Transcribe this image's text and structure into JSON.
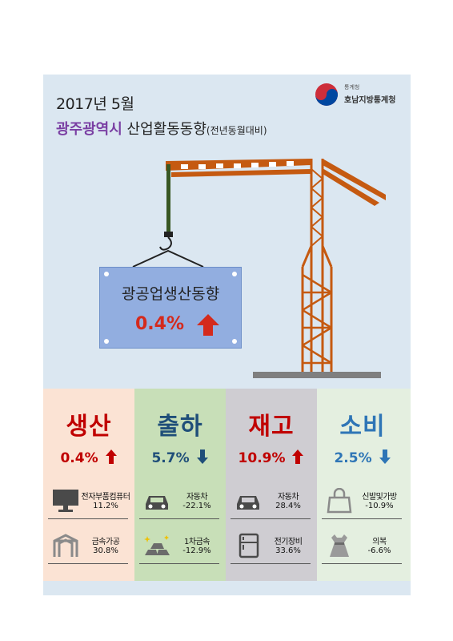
{
  "header": {
    "date": "2017년 5월",
    "city": "광주광역시",
    "topic": "산업활동동향",
    "note": "(전년동월대비)"
  },
  "logo": {
    "small_text": "통계청",
    "agency": "호남지방통계청"
  },
  "sign": {
    "label": "광공업생산동향",
    "value": "0.4%",
    "direction": "up"
  },
  "colors": {
    "background": "#dbe7f1",
    "crane": "#c55a11",
    "up_arrow": "#d42a1c",
    "down_arrow": "#2e75b6",
    "production_bg": "#fbe3d4",
    "shipment_bg": "#c8dfb8",
    "inventory_bg": "#cfcdd2",
    "consumption_bg": "#e4efe0"
  },
  "cards": [
    {
      "title": "생산",
      "value": "0.4%",
      "direction": "up",
      "title_color": "#c00000",
      "value_color": "#c00000",
      "items": [
        {
          "icon": "monitor-icon",
          "name": "전자부품컴퓨터",
          "pct": "11.2%"
        },
        {
          "icon": "metal-frame-icon",
          "name": "금속가공",
          "pct": "30.8%"
        }
      ]
    },
    {
      "title": "출하",
      "value": "5.7%",
      "direction": "down",
      "title_color": "#1f4e79",
      "value_color": "#1f4e79",
      "items": [
        {
          "icon": "car-icon",
          "name": "자동차",
          "pct": "-22.1%"
        },
        {
          "icon": "gold-bars-icon",
          "name": "1차금속",
          "pct": "-12.9%"
        }
      ]
    },
    {
      "title": "재고",
      "value": "10.9%",
      "direction": "up",
      "title_color": "#c00000",
      "value_color": "#c00000",
      "items": [
        {
          "icon": "car-icon",
          "name": "자동차",
          "pct": "28.4%"
        },
        {
          "icon": "refrigerator-icon",
          "name": "전기장비",
          "pct": "33.6%"
        }
      ]
    },
    {
      "title": "소비",
      "value": "2.5%",
      "direction": "down",
      "title_color": "#2e75b6",
      "value_color": "#2e75b6",
      "items": [
        {
          "icon": "handbag-icon",
          "name": "신발및가방",
          "pct": "-10.9%"
        },
        {
          "icon": "dress-icon",
          "name": "의복",
          "pct": "-6.6%"
        }
      ]
    }
  ]
}
